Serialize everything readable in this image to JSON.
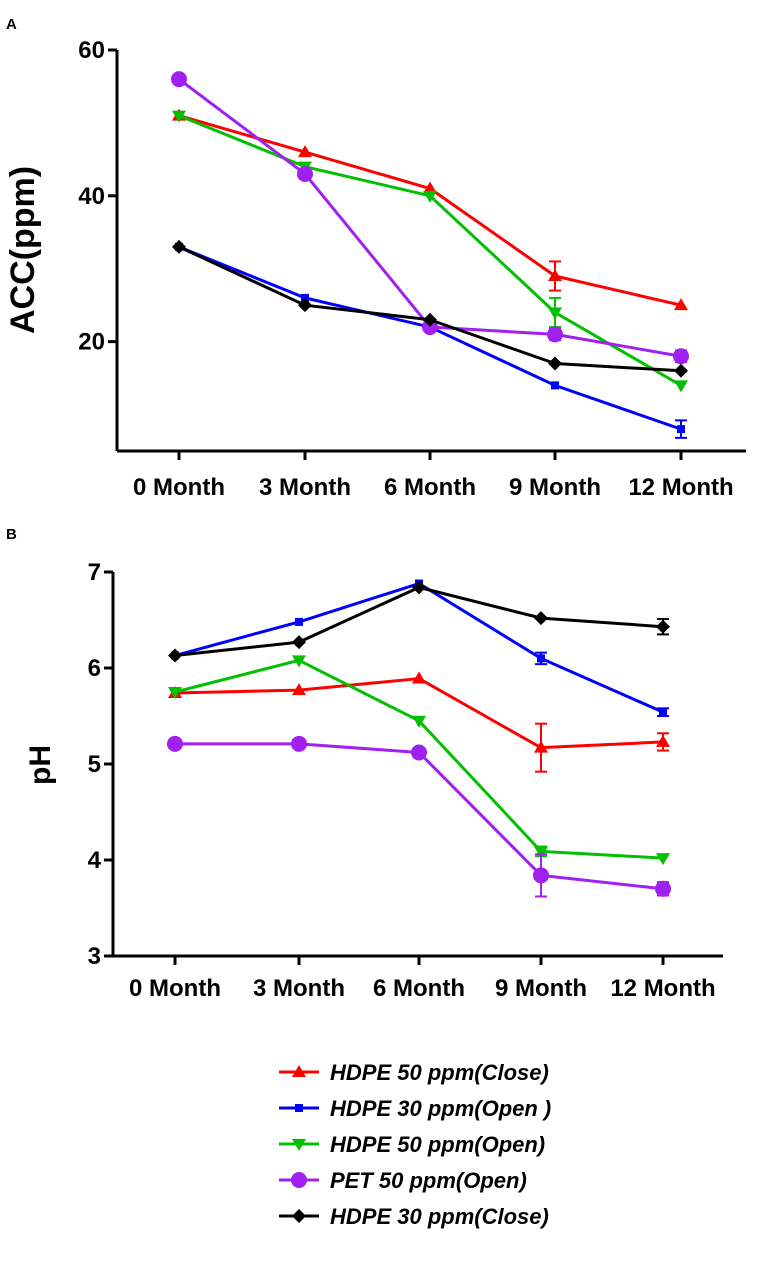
{
  "legend": [
    {
      "label": "HDPE 50 ppm(Close)",
      "color": "#ff0000",
      "marker": "triangle-up"
    },
    {
      "label": "HDPE 30 ppm(Open )",
      "color": "#0000ff",
      "marker": "square"
    },
    {
      "label": "HDPE 50 ppm(Open)",
      "color": "#00c000",
      "marker": "triangle-down"
    },
    {
      "label": "PET 50 ppm(Open)",
      "color": "#a020f0",
      "marker": "circle"
    },
    {
      "label": "HDPE 30 ppm(Close)",
      "color": "#000000",
      "marker": "diamond"
    }
  ],
  "chart_data": [
    {
      "panel": "A",
      "type": "line",
      "ylabel": "ACC(ppm)",
      "categories": [
        "0 Month",
        "3 Month",
        "6 Month",
        "9 Month",
        "12 Month"
      ],
      "ylim": [
        5,
        60
      ],
      "yticks": [
        "20",
        "40",
        "60"
      ],
      "series": [
        {
          "name": "HDPE 50 ppm(Close)",
          "values": [
            51,
            46,
            41,
            29,
            25
          ],
          "errors": [
            0,
            0,
            0,
            2,
            0
          ]
        },
        {
          "name": "HDPE 30 ppm(Open )",
          "values": [
            33,
            26,
            22,
            14,
            8
          ],
          "errors": [
            0,
            0,
            0,
            0,
            1.2
          ]
        },
        {
          "name": "HDPE 50 ppm(Open)",
          "values": [
            51,
            44,
            40,
            24,
            14
          ],
          "errors": [
            0,
            0,
            0,
            2,
            0
          ]
        },
        {
          "name": "PET 50 ppm(Open)",
          "values": [
            56,
            43,
            22,
            21,
            18
          ],
          "errors": [
            0,
            0,
            0,
            0.8,
            0.8
          ]
        },
        {
          "name": "HDPE 30 ppm(Close)",
          "values": [
            33,
            25,
            23,
            17,
            16
          ],
          "errors": [
            0,
            0,
            0,
            0,
            0
          ]
        }
      ]
    },
    {
      "panel": "B",
      "type": "line",
      "ylabel": "pH",
      "categories": [
        "0 Month",
        "3 Month",
        "6 Month",
        "9 Month",
        "12 Month"
      ],
      "ylim": [
        3,
        7
      ],
      "yticks": [
        "3",
        "4",
        "5",
        "6",
        "7"
      ],
      "series": [
        {
          "name": "HDPE 50 ppm(Close)",
          "values": [
            5.74,
            5.77,
            5.89,
            5.17,
            5.23
          ],
          "errors": [
            0,
            0,
            0,
            0.25,
            0.09
          ]
        },
        {
          "name": "HDPE 30 ppm(Open )",
          "values": [
            6.13,
            6.48,
            6.88,
            6.1,
            5.54
          ],
          "errors": [
            0,
            0,
            0,
            0.06,
            0.04
          ]
        },
        {
          "name": "HDPE 50 ppm(Open)",
          "values": [
            5.75,
            6.08,
            5.45,
            4.09,
            4.02
          ],
          "errors": [
            0,
            0,
            0,
            0.05,
            0
          ]
        },
        {
          "name": "PET 50 ppm(Open)",
          "values": [
            5.21,
            5.21,
            5.12,
            3.84,
            3.7
          ],
          "errors": [
            0,
            0,
            0,
            0.22,
            0.07
          ]
        },
        {
          "name": "HDPE 30 ppm(Close)",
          "values": [
            6.13,
            6.27,
            6.84,
            6.52,
            6.43
          ],
          "errors": [
            0,
            0,
            0,
            0,
            0.08
          ]
        }
      ]
    }
  ]
}
